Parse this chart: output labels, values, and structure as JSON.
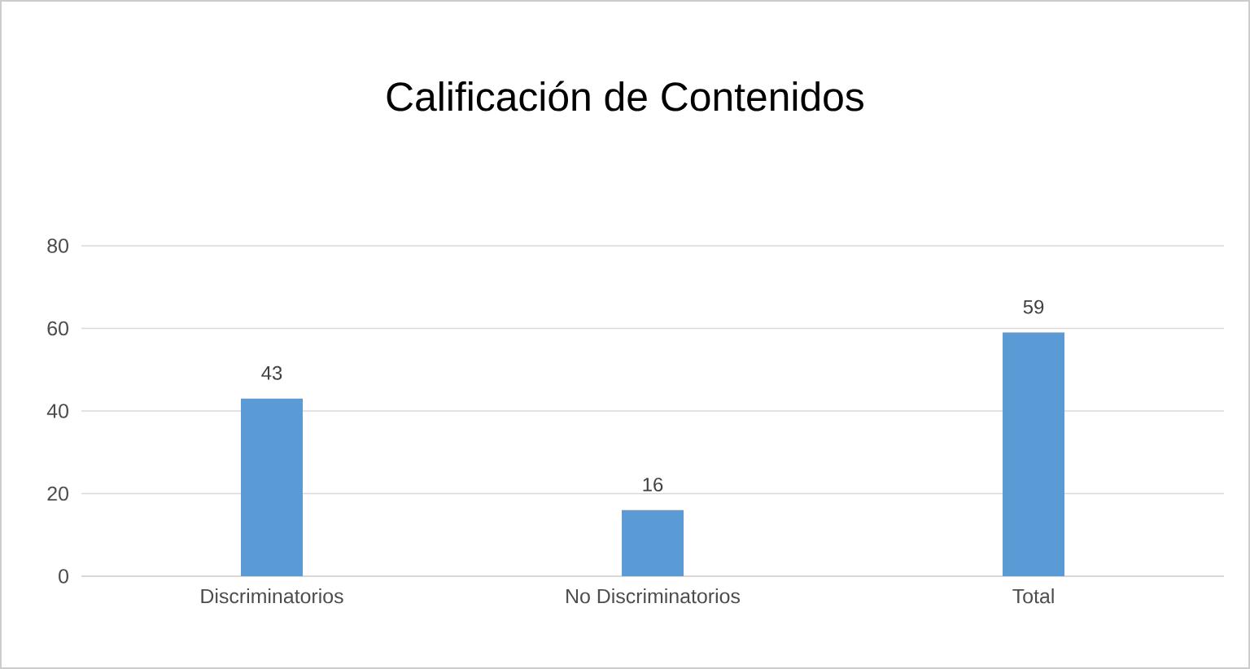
{
  "chart_data": {
    "type": "bar",
    "title": "Calificación de Contenidos",
    "categories": [
      "Discriminatorios",
      "No Discriminatorios",
      "Total"
    ],
    "values": [
      43,
      16,
      59
    ],
    "color": "#5b9bd5",
    "data_labels": true,
    "ylim": [
      0,
      80
    ],
    "yticks": [
      0,
      20,
      40,
      60,
      80
    ],
    "grid": "y"
  }
}
